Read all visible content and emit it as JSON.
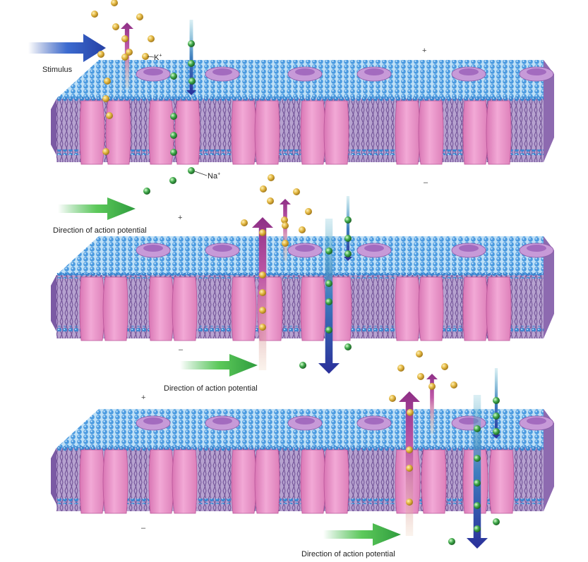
{
  "labels": {
    "stimulus": "Stimulus",
    "potassium": "K",
    "potassium_charge": "+",
    "sodium": "Na",
    "sodium_charge": "+",
    "direction": "Direction of action potential"
  },
  "signs": {
    "plus": "+",
    "minus": "–"
  },
  "colors": {
    "membrane_head": "#3f8fd6",
    "membrane_tail": "#9a7ab8",
    "channel": "#e78fc4",
    "gate": "#b07cc8",
    "potassium_ion": "#d4a72c",
    "sodium_ion": "#2f8a3a",
    "potassium_arrow": "#9c3a8e",
    "sodium_arrow": "#2b3f9c",
    "direction_arrow": "#3cb54a",
    "stimulus_arrow": "#2a4fb0"
  },
  "panels": [
    {
      "name": "panel-1-stimulus",
      "active_channel": 1
    },
    {
      "name": "panel-2-propagation",
      "active_channel": 3
    },
    {
      "name": "panel-3-propagation",
      "active_channel": 5
    }
  ]
}
